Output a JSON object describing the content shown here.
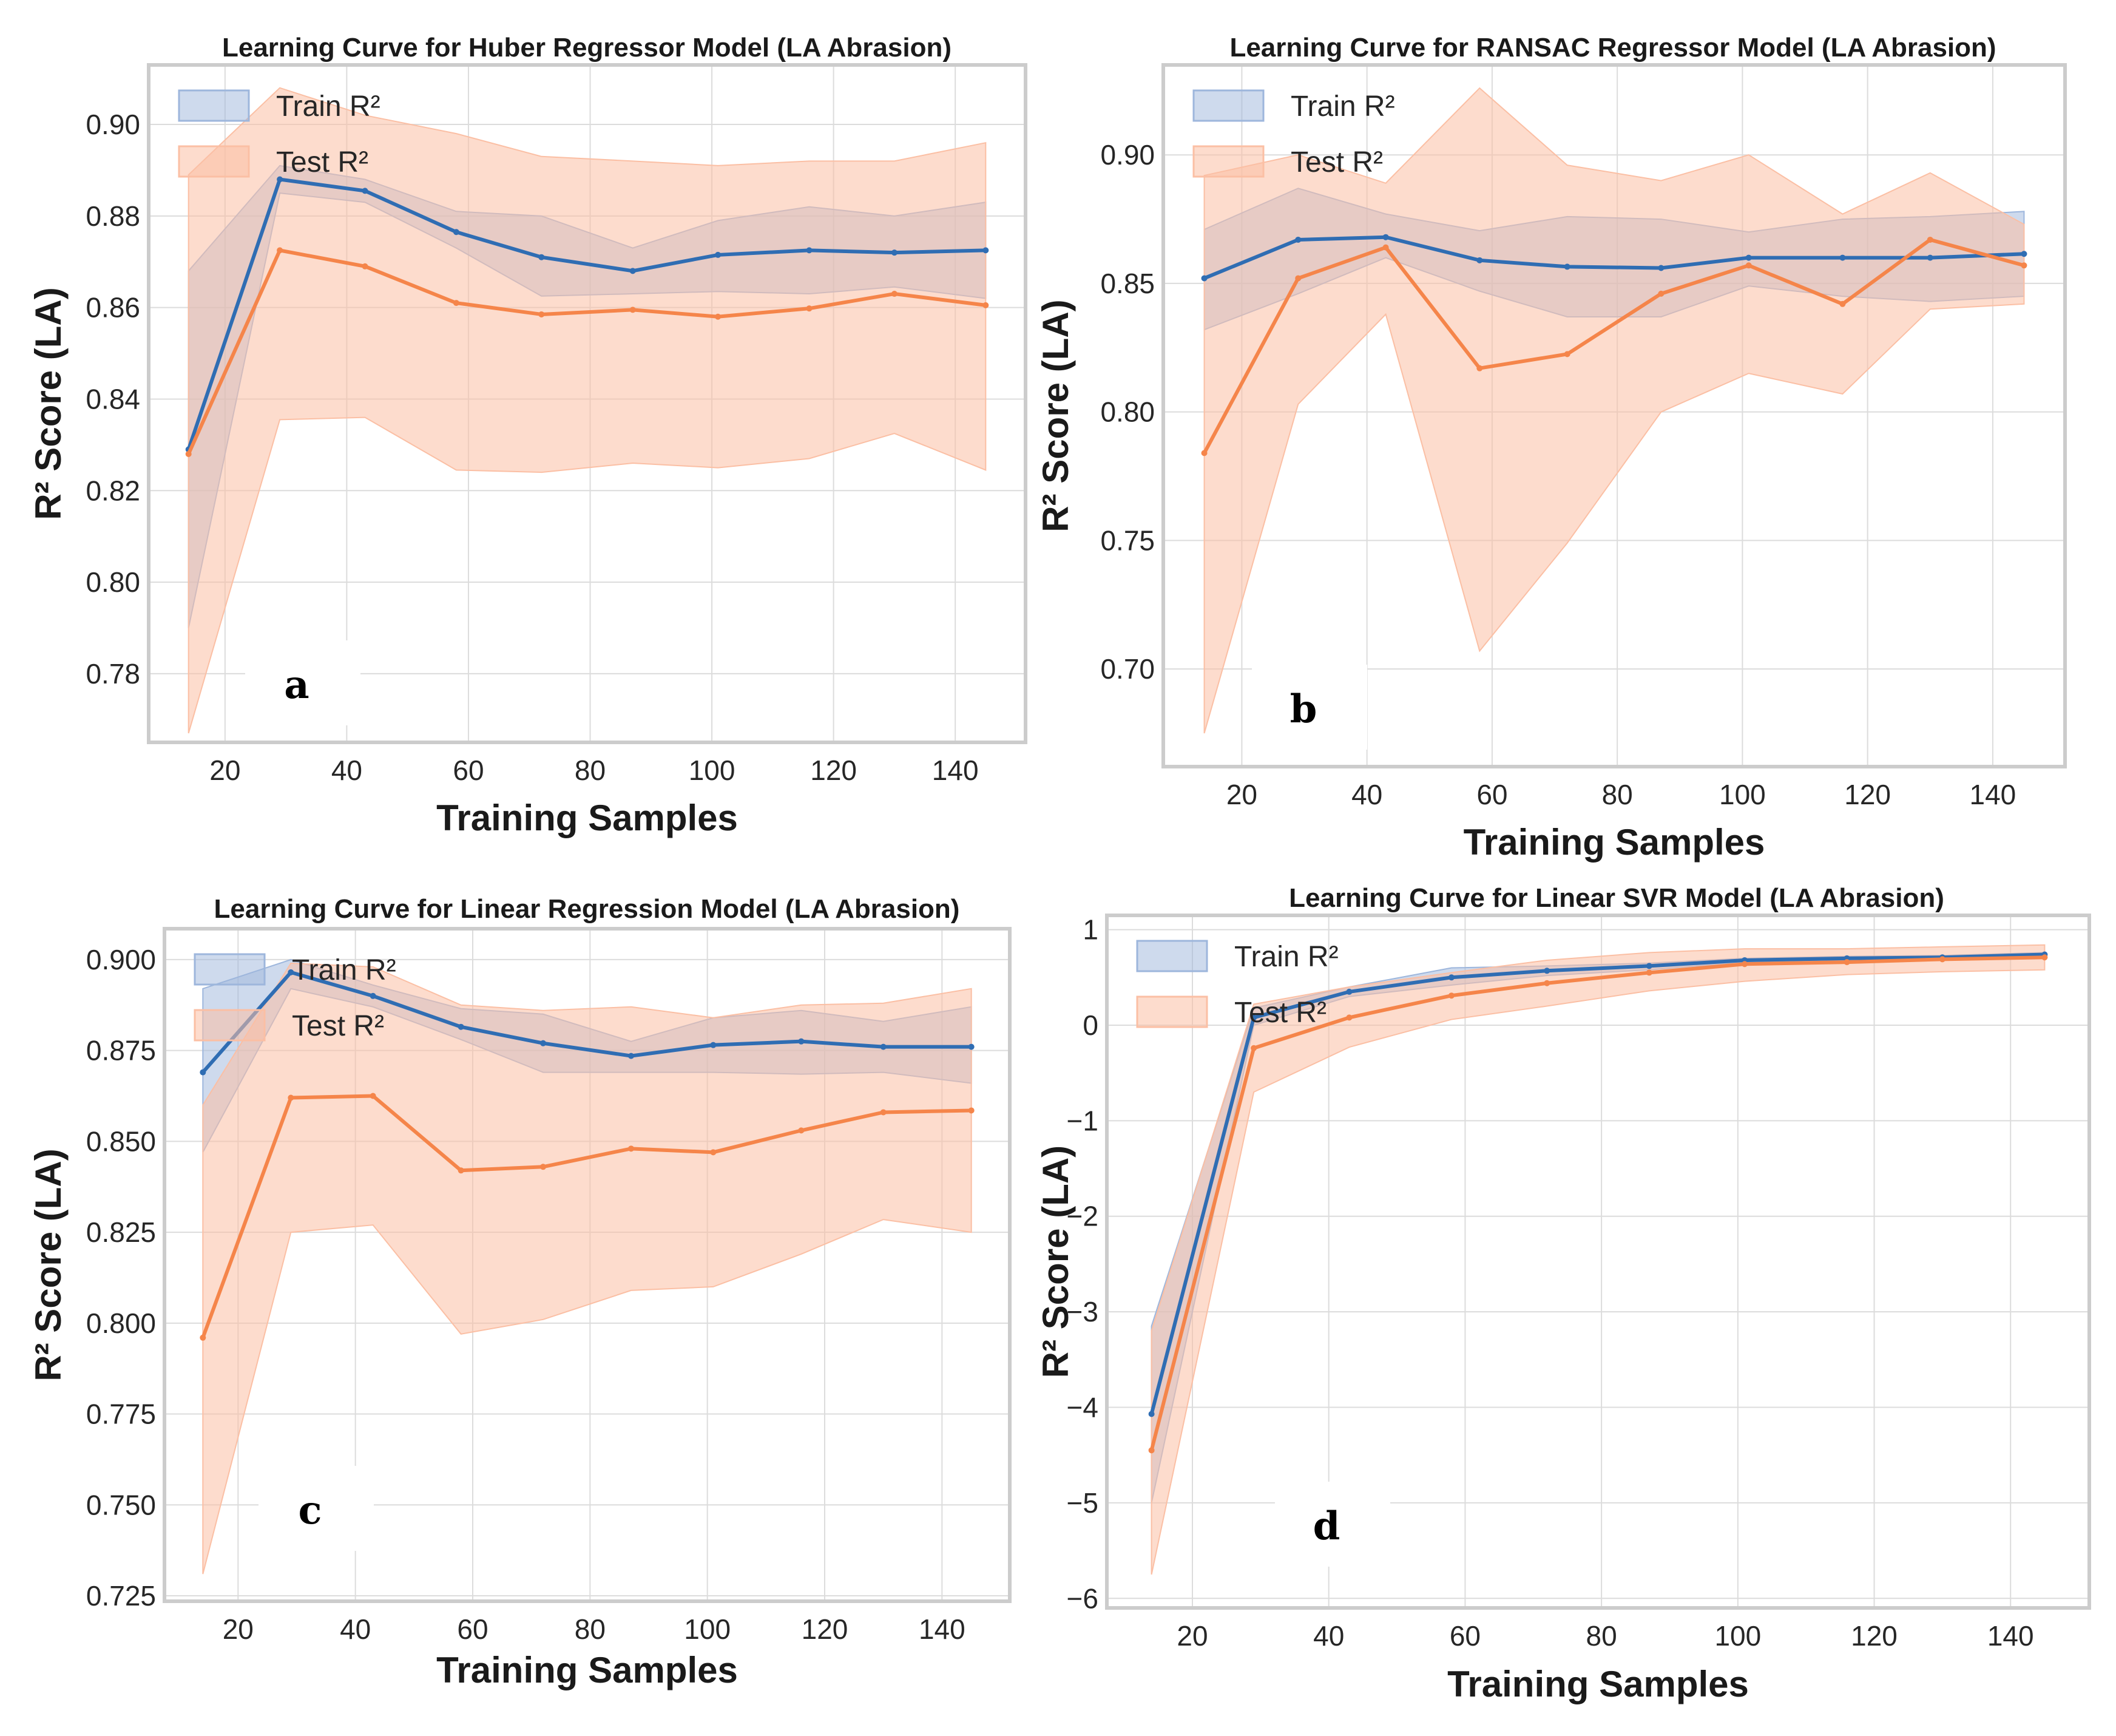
{
  "colors": {
    "train": "#2f6db3",
    "train_band": "#9db6dc",
    "test": "#f5854a",
    "test_band": "#fbbfa4"
  },
  "chart_data": [
    {
      "type": "line",
      "panel_label": "a",
      "title": "Learning Curve for Huber Regressor Model (LA Abrasion)",
      "xlabel": "Training Samples",
      "ylabel": "R² Score (LA)",
      "xlim": [
        7.45,
        151.55
      ],
      "ylim": [
        0.765,
        0.913
      ],
      "xticks": [
        20,
        40,
        60,
        80,
        100,
        120,
        140
      ],
      "yticks": [
        0.78,
        0.8,
        0.82,
        0.84,
        0.86,
        0.88,
        0.9
      ],
      "ytick_labels": [
        "0.78",
        "0.80",
        "0.82",
        "0.84",
        "0.86",
        "0.88",
        "0.90"
      ],
      "grid": true,
      "legend": "upper-left",
      "legend_labels": [
        "Train R²",
        "Test R²"
      ],
      "x": [
        14,
        29,
        43,
        58,
        72,
        87,
        101,
        116,
        130,
        145
      ],
      "series": [
        {
          "name": "Train R²",
          "values": [
            0.829,
            0.888,
            0.8855,
            0.8765,
            0.871,
            0.868,
            0.8715,
            0.8725,
            0.872,
            0.8725
          ],
          "upper": [
            0.868,
            0.891,
            0.888,
            0.881,
            0.88,
            0.873,
            0.879,
            0.882,
            0.88,
            0.883
          ],
          "lower": [
            0.79,
            0.885,
            0.883,
            0.873,
            0.8625,
            0.863,
            0.8635,
            0.863,
            0.8645,
            0.862
          ]
        },
        {
          "name": "Test R²",
          "values": [
            0.828,
            0.8725,
            0.869,
            0.861,
            0.8585,
            0.8595,
            0.858,
            0.8598,
            0.863,
            0.8605
          ],
          "upper": [
            0.889,
            0.908,
            0.902,
            0.898,
            0.893,
            0.892,
            0.891,
            0.892,
            0.892,
            0.896
          ],
          "lower": [
            0.767,
            0.8355,
            0.836,
            0.8245,
            0.824,
            0.826,
            0.825,
            0.827,
            0.8325,
            0.8245
          ]
        }
      ]
    },
    {
      "type": "line",
      "panel_label": "b",
      "title": "Learning Curve for RANSAC Regressor Model (LA Abrasion)",
      "xlabel": "Training Samples",
      "ylabel": "R² Score (LA)",
      "xlim": [
        7.45,
        151.55
      ],
      "ylim": [
        0.662,
        0.935
      ],
      "xticks": [
        20,
        40,
        60,
        80,
        100,
        120,
        140
      ],
      "yticks": [
        0.7,
        0.75,
        0.8,
        0.85,
        0.9
      ],
      "ytick_labels": [
        "0.70",
        "0.75",
        "0.80",
        "0.85",
        "0.90"
      ],
      "grid": true,
      "legend": "upper-left",
      "legend_labels": [
        "Train R²",
        "Test R²"
      ],
      "x": [
        14,
        29,
        43,
        58,
        72,
        87,
        101,
        116,
        130,
        145
      ],
      "series": [
        {
          "name": "Train R²",
          "values": [
            0.852,
            0.867,
            0.868,
            0.859,
            0.8565,
            0.856,
            0.86,
            0.86,
            0.86,
            0.8615
          ],
          "upper": [
            0.871,
            0.887,
            0.877,
            0.8705,
            0.876,
            0.875,
            0.87,
            0.875,
            0.876,
            0.878
          ],
          "lower": [
            0.832,
            0.846,
            0.86,
            0.847,
            0.837,
            0.837,
            0.849,
            0.845,
            0.843,
            0.845
          ]
        },
        {
          "name": "Test R²",
          "values": [
            0.784,
            0.852,
            0.864,
            0.817,
            0.8225,
            0.846,
            0.857,
            0.842,
            0.867,
            0.857
          ],
          "upper": [
            0.892,
            0.9,
            0.889,
            0.926,
            0.896,
            0.89,
            0.9,
            0.877,
            0.893,
            0.873
          ],
          "lower": [
            0.675,
            0.803,
            0.838,
            0.707,
            0.749,
            0.8,
            0.815,
            0.807,
            0.84,
            0.842
          ]
        }
      ]
    },
    {
      "type": "line",
      "panel_label": "c",
      "title": "Learning Curve for Linear Regression Model (LA Abrasion)",
      "xlabel": "Training Samples",
      "ylabel": "R² Score (LA)",
      "xlim": [
        7.45,
        151.55
      ],
      "ylim": [
        0.7235,
        0.9085
      ],
      "xticks": [
        20,
        40,
        60,
        80,
        100,
        120,
        140
      ],
      "yticks": [
        0.725,
        0.75,
        0.775,
        0.8,
        0.825,
        0.85,
        0.875,
        0.9
      ],
      "ytick_labels": [
        "0.725",
        "0.750",
        "0.775",
        "0.800",
        "0.825",
        "0.850",
        "0.875",
        "0.900"
      ],
      "grid": true,
      "legend": "upper-left",
      "legend_labels": [
        "Train R²",
        "Test R²"
      ],
      "x": [
        14,
        29,
        43,
        58,
        72,
        87,
        101,
        116,
        130,
        145
      ],
      "series": [
        {
          "name": "Train R²",
          "values": [
            0.869,
            0.8965,
            0.89,
            0.8815,
            0.877,
            0.8735,
            0.8765,
            0.8775,
            0.876,
            0.876
          ],
          "upper": [
            0.892,
            0.9,
            0.893,
            0.8865,
            0.885,
            0.8775,
            0.884,
            0.886,
            0.883,
            0.887
          ],
          "lower": [
            0.847,
            0.892,
            0.887,
            0.878,
            0.869,
            0.869,
            0.869,
            0.8685,
            0.869,
            0.866
          ]
        },
        {
          "name": "Test R²",
          "values": [
            0.796,
            0.862,
            0.8625,
            0.842,
            0.843,
            0.848,
            0.847,
            0.853,
            0.858,
            0.8585
          ],
          "upper": [
            0.86,
            0.899,
            0.898,
            0.8875,
            0.886,
            0.887,
            0.884,
            0.8875,
            0.888,
            0.892
          ],
          "lower": [
            0.731,
            0.825,
            0.827,
            0.797,
            0.801,
            0.809,
            0.81,
            0.819,
            0.8285,
            0.825
          ]
        }
      ]
    },
    {
      "type": "line",
      "panel_label": "d",
      "title": "Learning Curve for Linear SVR Model (LA Abrasion)",
      "xlabel": "Training Samples",
      "ylabel": "R² Score (LA)",
      "xlim": [
        7.45,
        151.55
      ],
      "ylim": [
        -6.1,
        1.15
      ],
      "xticks": [
        20,
        40,
        60,
        80,
        100,
        120,
        140
      ],
      "yticks": [
        -6,
        -5,
        -4,
        -3,
        -2,
        -1,
        0,
        1
      ],
      "ytick_labels": [
        "−6",
        "−5",
        "−4",
        "−3",
        "−2",
        "−1",
        "0",
        "1"
      ],
      "grid": true,
      "legend": "upper-left",
      "legend_labels": [
        "Train R²",
        "Test R²"
      ],
      "x": [
        14,
        29,
        43,
        58,
        72,
        87,
        101,
        116,
        130,
        145
      ],
      "series": [
        {
          "name": "Train R²",
          "values": [
            -4.07,
            0.08,
            0.35,
            0.5,
            0.57,
            0.62,
            0.68,
            0.7,
            0.71,
            0.74
          ],
          "upper": [
            -3.15,
            0.18,
            0.4,
            0.6,
            0.62,
            0.65,
            0.7,
            0.72,
            0.73,
            0.76
          ],
          "lower": [
            -5.0,
            0.0,
            0.3,
            0.42,
            0.52,
            0.58,
            0.66,
            0.68,
            0.69,
            0.72
          ]
        },
        {
          "name": "Test R²",
          "values": [
            -4.45,
            -0.24,
            0.08,
            0.31,
            0.44,
            0.55,
            0.64,
            0.66,
            0.69,
            0.71
          ],
          "upper": [
            -3.2,
            0.22,
            0.4,
            0.55,
            0.68,
            0.76,
            0.8,
            0.8,
            0.82,
            0.84
          ],
          "lower": [
            -5.75,
            -0.7,
            -0.23,
            0.06,
            0.2,
            0.36,
            0.46,
            0.53,
            0.56,
            0.58
          ]
        }
      ]
    }
  ]
}
